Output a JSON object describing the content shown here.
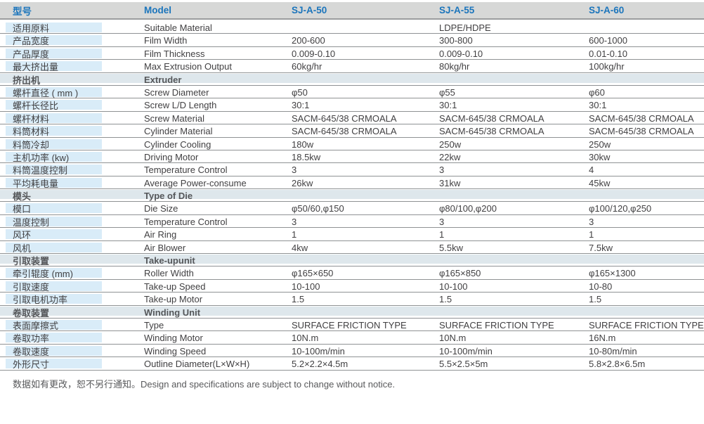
{
  "colors": {
    "header_bg": "#d7d8d7",
    "header_text": "#1b75bc",
    "label_bg": "#d9ecf8",
    "section_bg": "#dee7ec",
    "border": "#8f9294",
    "text": "#414042"
  },
  "table": {
    "header": {
      "cn": "型号",
      "en": "Model",
      "models": [
        "SJ-A-50",
        "SJ-A-55",
        "SJ-A-60"
      ]
    },
    "rows": [
      {
        "type": "data",
        "cn": "适用原料",
        "en": "Suitable Material",
        "values": [
          "",
          "LDPE/HDPE",
          ""
        ]
      },
      {
        "type": "data",
        "cn": "产品宽度",
        "en": "Film Width",
        "values": [
          "200-600",
          "300-800",
          "600-1000"
        ]
      },
      {
        "type": "data",
        "cn": "产品厚度",
        "en": "Film Thickness",
        "values": [
          "0.009-0.10",
          "0.009-0.10",
          "0.01-0.10"
        ]
      },
      {
        "type": "data",
        "cn": "最大挤出量",
        "en": "Max Extrusion Output",
        "values": [
          "60kg/hr",
          "80kg/hr",
          "100kg/hr"
        ]
      },
      {
        "type": "section",
        "cn": "挤出机",
        "en": "Extruder"
      },
      {
        "type": "data",
        "cn": "螺杆直径 ( mm )",
        "en": "Screw Diameter",
        "values": [
          "φ50",
          "φ55",
          "φ60"
        ]
      },
      {
        "type": "data",
        "cn": "螺杆长径比",
        "en": "Screw L/D Length",
        "values": [
          "30:1",
          "30:1",
          "30:1"
        ]
      },
      {
        "type": "data",
        "cn": "螺杆材料",
        "en": "Screw Material",
        "values": [
          "SACM-645/38 CRMOALA",
          "SACM-645/38 CRMOALA",
          "SACM-645/38 CRMOALA"
        ]
      },
      {
        "type": "data",
        "cn": "料筒材料",
        "en": "Cylinder Material",
        "values": [
          "SACM-645/38 CRMOALA",
          "SACM-645/38 CRMOALA",
          "SACM-645/38 CRMOALA"
        ]
      },
      {
        "type": "data",
        "cn": "料筒冷却",
        "en": "Cylinder Cooling",
        "values": [
          "180w",
          "250w",
          "250w"
        ]
      },
      {
        "type": "data",
        "cn": "主机功率 (kw)",
        "en": "Driving Motor",
        "values": [
          "18.5kw",
          "22kw",
          "30kw"
        ]
      },
      {
        "type": "data",
        "cn": "料筒温度控制",
        "en": "Temperature Control",
        "values": [
          "3",
          "3",
          "4"
        ]
      },
      {
        "type": "data",
        "cn": "平均耗电量",
        "en": "Average Power-consume",
        "values": [
          "26kw",
          "31kw",
          "45kw"
        ]
      },
      {
        "type": "section",
        "cn": "模头",
        "en": "Type of Die"
      },
      {
        "type": "data",
        "cn": "模口",
        "en": "Die Size",
        "values": [
          "φ50/60,φ150",
          "φ80/100,φ200",
          "φ100/120,φ250"
        ]
      },
      {
        "type": "data",
        "cn": "温度控制",
        "en": "Temperature Control",
        "values": [
          "3",
          "3",
          "3"
        ]
      },
      {
        "type": "data",
        "cn": "风环",
        "en": "Air Ring",
        "values": [
          "1",
          "1",
          "1"
        ]
      },
      {
        "type": "data",
        "cn": "风机",
        "en": "Air Blower",
        "values": [
          "4kw",
          "5.5kw",
          "7.5kw"
        ]
      },
      {
        "type": "section",
        "cn": "引取装置",
        "en": "Take-upunit"
      },
      {
        "type": "data",
        "cn": "牵引辊度 (mm)",
        "en": "Roller Width",
        "values": [
          "φ165×650",
          "φ165×850",
          "φ165×1300"
        ]
      },
      {
        "type": "data",
        "cn": "引取速度",
        "en": "Take-up Speed",
        "values": [
          "10-100",
          "10-100",
          "10-80"
        ]
      },
      {
        "type": "data",
        "cn": "引取电机功率",
        "en": "Take-up Motor",
        "values": [
          "1.5",
          "1.5",
          "1.5"
        ]
      },
      {
        "type": "section",
        "cn": "卷取装置",
        "en": "Winding Unit"
      },
      {
        "type": "data",
        "cn": "表面摩擦式",
        "en": "Type",
        "values": [
          "SURFACE FRICTION TYPE",
          "SURFACE FRICTION TYPE",
          "SURFACE FRICTION TYPE"
        ]
      },
      {
        "type": "data",
        "cn": "卷取功率",
        "en": "Winding Motor",
        "values": [
          "10N.m",
          "10N.m",
          "16N.m"
        ]
      },
      {
        "type": "data",
        "cn": "卷取速度",
        "en": "Winding Speed",
        "values": [
          "10-100m/min",
          "10-100m/min",
          "10-80m/min"
        ]
      },
      {
        "type": "data",
        "cn": "外形尺寸",
        "en": "Outline Diameter(L×W×H)",
        "values": [
          "5.2×2.2×4.5m",
          "5.5×2.5×5m",
          "5.8×2.8×6.5m"
        ]
      }
    ]
  },
  "footer": {
    "note": "数据如有更改，恕不另行通知。Design and specifications are subject to change without notice."
  }
}
